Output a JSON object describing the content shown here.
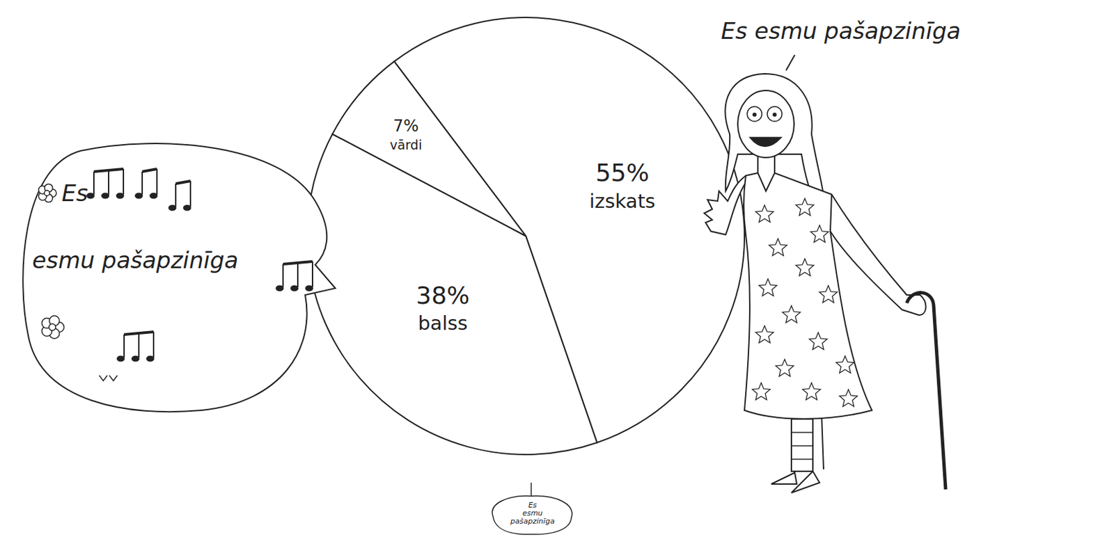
{
  "chart_data": {
    "type": "pie",
    "categories": [
      "izskats",
      "balss",
      "vārdi"
    ],
    "values": [
      55,
      38,
      7
    ],
    "value_labels": [
      "55%",
      "38%",
      "7%"
    ],
    "data_labels": true,
    "colors": [
      "#ffffff",
      "#ffffff",
      "#ffffff"
    ],
    "annotations": [
      "Es esmu pašapzinīga",
      "Es esmu pašapzinīga",
      "Es esmu pašapzinīga"
    ]
  }
}
